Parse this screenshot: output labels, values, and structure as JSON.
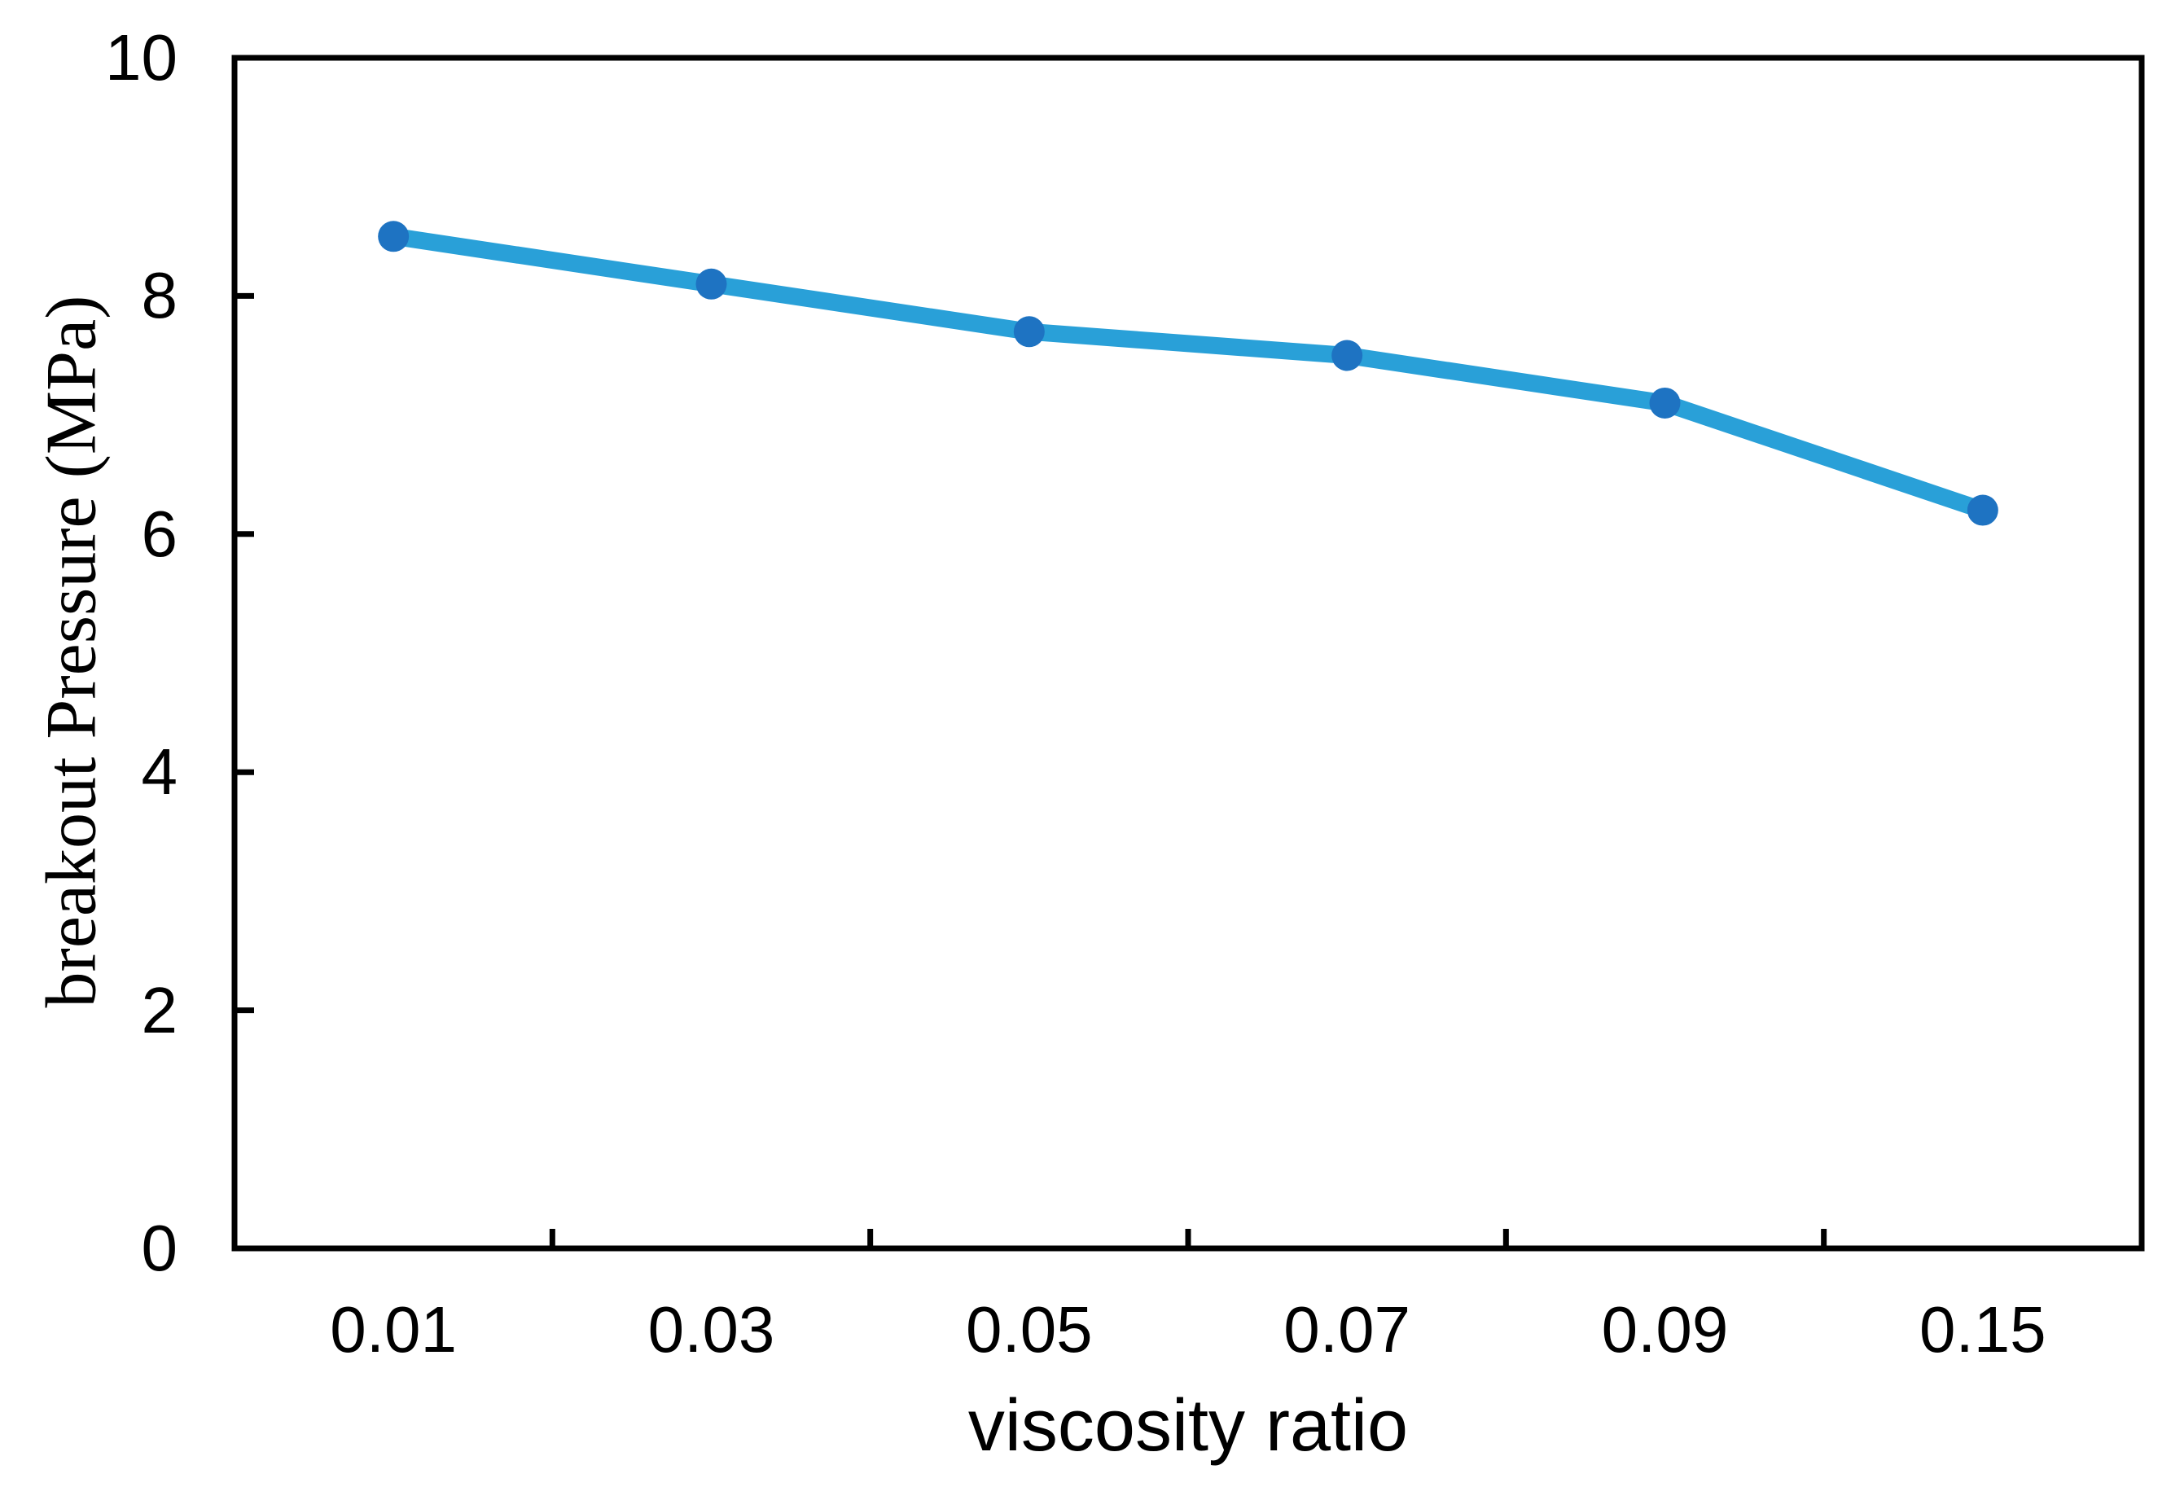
{
  "chart_data": {
    "type": "line",
    "title": "",
    "categories": [
      "0.01",
      "0.03",
      "0.05",
      "0.07",
      "0.09",
      "0.15"
    ],
    "series": [
      {
        "name": "breakout pressure",
        "values": [
          8.5,
          8.1,
          7.7,
          7.5,
          7.1,
          6.2
        ]
      }
    ],
    "xlabel": "viscosity ratio",
    "ylabel": "breakout Pressure（MPa）",
    "ylim": [
      0,
      10
    ],
    "y_ticks": [
      0,
      2,
      4,
      6,
      8,
      10
    ],
    "grid": false,
    "legend": "none",
    "marker_style": "circle",
    "line_color": "#29A0D8",
    "marker_color": "#1E73C2",
    "axis_color": "#000000",
    "background_color": "#FFFFFF"
  }
}
